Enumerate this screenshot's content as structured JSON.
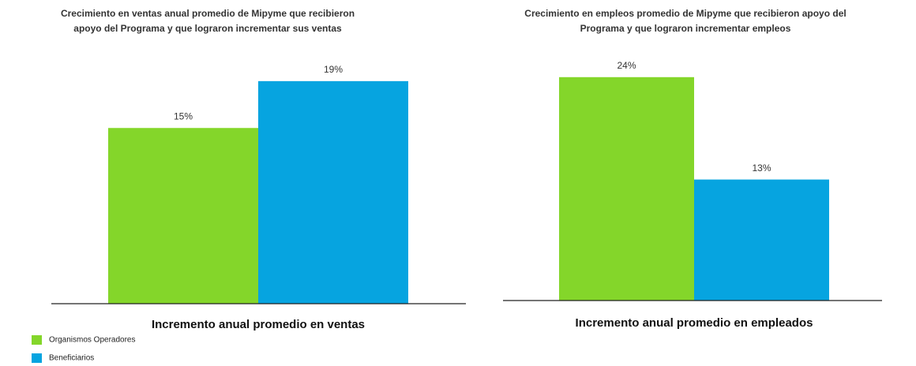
{
  "chart_data": [
    {
      "type": "bar",
      "title": [
        "Crecimiento en ventas anual promedio de Mipyme que recibieron",
        "apoyo del Programa y que lograron incrementar sus ventas"
      ],
      "categories": [
        "Incremento anual promedio en ventas"
      ],
      "series": [
        {
          "name": "Organismos Operadores",
          "color": "#84d62a",
          "values": [
            15
          ],
          "value_labels": [
            "15%"
          ]
        },
        {
          "name": "Beneficiarios",
          "color": "#06a4e0",
          "values": [
            19
          ],
          "value_labels": [
            "19%"
          ]
        }
      ],
      "ylim": [
        0,
        20
      ],
      "legend": "bottom-left"
    },
    {
      "type": "bar",
      "title": [
        "Crecimiento en empleos promedio de Mipyme que recibieron apoyo del",
        "Programa y que lograron incrementar empleos"
      ],
      "categories": [
        "Incremento anual promedio en empleados"
      ],
      "series": [
        {
          "color": "#84d62a",
          "values": [
            24
          ],
          "value_labels": [
            "24%"
          ]
        },
        {
          "color": "#06a4e0",
          "values": [
            13
          ],
          "value_labels": [
            "13%"
          ]
        }
      ],
      "ylim": [
        0,
        25
      ]
    }
  ]
}
